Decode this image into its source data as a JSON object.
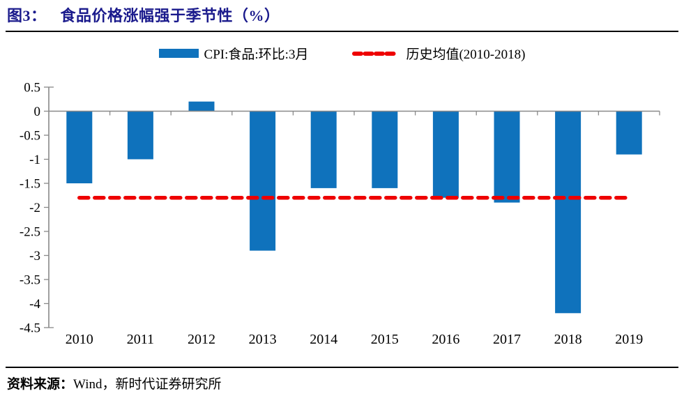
{
  "header": {
    "figure_label": "图3：",
    "title": "食品价格涨幅强于季节性（%）",
    "title_color": "#1A1A8C"
  },
  "legend": [
    {
      "type": "bar",
      "label": "CPI:食品:环比:3月",
      "color": "#0F72BC"
    },
    {
      "type": "dashed-line",
      "label": "历史均值(2010-2018)",
      "color": "#EE0000"
    }
  ],
  "chart_data": {
    "type": "bar",
    "title": "食品价格涨幅强于季节性（%）",
    "categories": [
      "2010",
      "2011",
      "2012",
      "2013",
      "2014",
      "2015",
      "2016",
      "2017",
      "2018",
      "2019"
    ],
    "series": [
      {
        "name": "CPI:食品:环比:3月",
        "type": "bar",
        "color": "#0F72BC",
        "values": [
          -1.5,
          -1.0,
          0.2,
          -2.9,
          -1.6,
          -1.6,
          -1.8,
          -1.9,
          -4.2,
          -0.9
        ]
      },
      {
        "name": "历史均值(2010-2018)",
        "type": "dashed-line",
        "color": "#EE0000",
        "value": -1.8
      }
    ],
    "xlabel": "",
    "ylabel": "",
    "ylim": [
      -4.5,
      0.5
    ],
    "yticks": [
      0.5,
      0,
      -0.5,
      -1,
      -1.5,
      -2,
      -2.5,
      -3,
      -3.5,
      -4,
      -4.5
    ],
    "grid": false,
    "legend_position": "top",
    "axis_color": "#898989",
    "tick_label_color": "#000000"
  },
  "footer": {
    "source_label": "资料来源：",
    "source_text": "Wind，新时代证券研究所"
  }
}
